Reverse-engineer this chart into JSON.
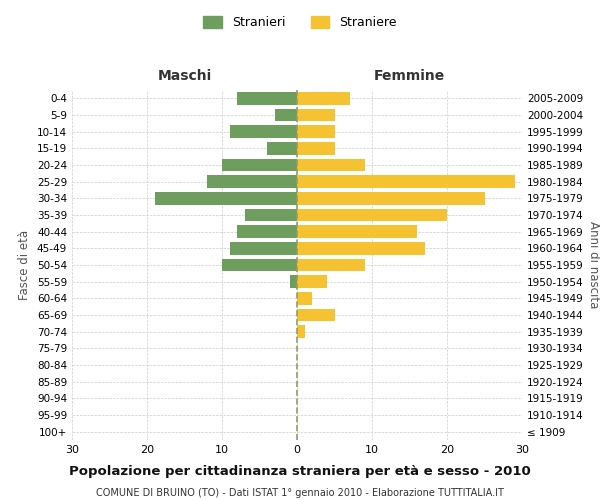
{
  "age_groups": [
    "100+",
    "95-99",
    "90-94",
    "85-89",
    "80-84",
    "75-79",
    "70-74",
    "65-69",
    "60-64",
    "55-59",
    "50-54",
    "45-49",
    "40-44",
    "35-39",
    "30-34",
    "25-29",
    "20-24",
    "15-19",
    "10-14",
    "5-9",
    "0-4"
  ],
  "birth_years": [
    "≤ 1909",
    "1910-1914",
    "1915-1919",
    "1920-1924",
    "1925-1929",
    "1930-1934",
    "1935-1939",
    "1940-1944",
    "1945-1949",
    "1950-1954",
    "1955-1959",
    "1960-1964",
    "1965-1969",
    "1970-1974",
    "1975-1979",
    "1980-1984",
    "1985-1989",
    "1990-1994",
    "1995-1999",
    "2000-2004",
    "2005-2009"
  ],
  "males": [
    0,
    0,
    0,
    0,
    0,
    0,
    0,
    0,
    0,
    1,
    10,
    9,
    8,
    7,
    19,
    12,
    10,
    4,
    9,
    3,
    8
  ],
  "females": [
    0,
    0,
    0,
    0,
    0,
    0,
    1,
    5,
    2,
    4,
    9,
    17,
    16,
    20,
    25,
    29,
    9,
    5,
    5,
    5,
    7
  ],
  "male_color": "#6e9e5e",
  "female_color": "#f5c231",
  "background_color": "#ffffff",
  "grid_color": "#cccccc",
  "dashed_line_color": "#999966",
  "title": "Popolazione per cittadinanza straniera per età e sesso - 2010",
  "subtitle": "COMUNE DI BRUINO (TO) - Dati ISTAT 1° gennaio 2010 - Elaborazione TUTTITALIA.IT",
  "xlabel_left": "Maschi",
  "xlabel_right": "Femmine",
  "ylabel_left": "Fasce di età",
  "ylabel_right": "Anni di nascita",
  "legend_male": "Stranieri",
  "legend_female": "Straniere",
  "xlim": 30
}
